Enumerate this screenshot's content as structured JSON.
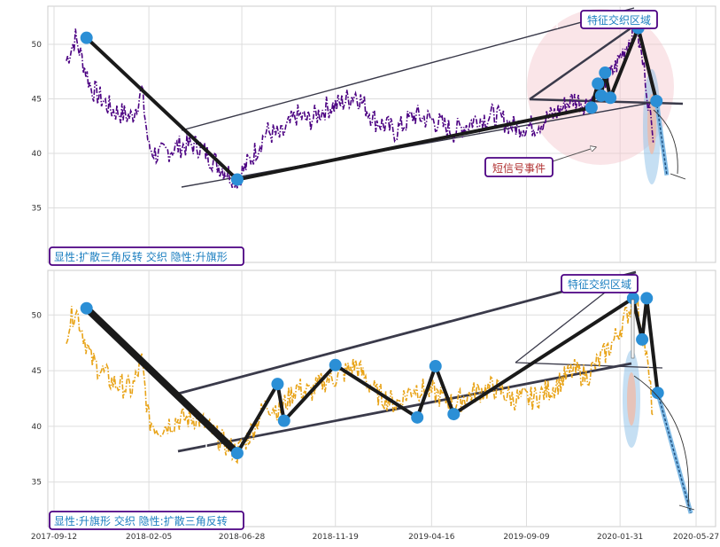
{
  "chart_data": [
    {
      "type": "line",
      "panel": "top",
      "ylim": [
        30,
        53.5
      ],
      "yticks": [
        "35",
        "40",
        "45",
        "50"
      ],
      "grid": true,
      "line_color": "#4b0082",
      "series": [
        {
          "values": [
            [
              "2017-10-01",
              48.5
            ],
            [
              "2017-10-15",
              50.6
            ],
            [
              "2017-11-08",
              46
            ],
            [
              "2017-12-10",
              44
            ],
            [
              "2018-01-10",
              43.3
            ],
            [
              "2018-01-25",
              45.8
            ],
            [
              "2018-02-05",
              40.5
            ],
            [
              "2018-02-20",
              39.8
            ],
            [
              "2018-03-20",
              40.6
            ],
            [
              "2018-04-20",
              40.8
            ],
            [
              "2018-05-25",
              38.8
            ],
            [
              "2018-06-21",
              37.6
            ],
            [
              "2018-07-12",
              39.5
            ],
            [
              "2018-08-05",
              42
            ],
            [
              "2018-08-27",
              41.5
            ],
            [
              "2018-09-20",
              43.5
            ],
            [
              "2018-10-10",
              43
            ],
            [
              "2018-11-05",
              44.2
            ],
            [
              "2018-11-25",
              44.5
            ],
            [
              "2018-12-20",
              45.5
            ],
            [
              "2019-01-20",
              43
            ],
            [
              "2019-02-20",
              42
            ],
            [
              "2019-03-20",
              43.5
            ],
            [
              "2019-04-20",
              43
            ],
            [
              "2019-05-20",
              42
            ],
            [
              "2019-06-20",
              43
            ],
            [
              "2019-07-20",
              43.5
            ],
            [
              "2019-08-20",
              42.5
            ],
            [
              "2019-09-20",
              42.5
            ],
            [
              "2019-10-20",
              43.5
            ],
            [
              "2019-11-20",
              45
            ],
            [
              "2019-12-10",
              44.5
            ],
            [
              "2020-01-01",
              46
            ],
            [
              "2020-01-20",
              47.5
            ],
            [
              "2020-02-10",
              50
            ],
            [
              "2020-02-25",
              51.5
            ],
            [
              "2020-03-10",
              47
            ],
            [
              "2020-03-22",
              41
            ]
          ]
        }
      ],
      "pivots": [
        [
          "2017-11-01",
          50.6
        ],
        [
          "2018-06-21",
          37.6
        ],
        [
          "2019-12-18",
          44.2
        ],
        [
          "2019-12-28",
          46.4
        ],
        [
          "2020-01-02",
          45.3
        ],
        [
          "2020-01-08",
          47.4
        ],
        [
          "2020-01-16",
          45.1
        ],
        [
          "2020-02-28",
          51.5
        ],
        [
          "2020-03-27",
          44.8
        ]
      ],
      "forecast_end": [
        "2020-04-12",
        38.0
      ],
      "annotations": [
        {
          "text": "特征交织区域"
        },
        {
          "text": "短信号事件"
        },
        {
          "text": "显性:扩散三角反转 交织 隐性:升旗形"
        }
      ]
    },
    {
      "type": "line",
      "panel": "bottom",
      "ylim": [
        31,
        54
      ],
      "yticks": [
        "35",
        "40",
        "45",
        "50"
      ],
      "xticks": [
        "2017-09-12",
        "2018-02-05",
        "2018-06-28",
        "2018-11-19",
        "2019-04-16",
        "2019-09-09",
        "2020-01-31",
        "2020-05-27"
      ],
      "grid": true,
      "line_color": "#e8a317",
      "series": [
        {
          "values": [
            [
              "2017-10-01",
              48.5
            ],
            [
              "2017-10-15",
              50.6
            ],
            [
              "2017-11-08",
              46
            ],
            [
              "2017-12-10",
              44
            ],
            [
              "2018-01-10",
              43.3
            ],
            [
              "2018-01-25",
              45.8
            ],
            [
              "2018-02-05",
              40.5
            ],
            [
              "2018-02-20",
              39.8
            ],
            [
              "2018-03-20",
              40.6
            ],
            [
              "2018-04-20",
              40.8
            ],
            [
              "2018-05-25",
              38.8
            ],
            [
              "2018-06-21",
              37.6
            ],
            [
              "2018-07-12",
              39.5
            ],
            [
              "2018-08-05",
              42
            ],
            [
              "2018-08-27",
              41.5
            ],
            [
              "2018-09-20",
              43.5
            ],
            [
              "2018-10-10",
              43
            ],
            [
              "2018-11-05",
              44.2
            ],
            [
              "2018-11-25",
              44.5
            ],
            [
              "2018-12-20",
              45.5
            ],
            [
              "2019-01-20",
              43
            ],
            [
              "2019-02-20",
              42
            ],
            [
              "2019-03-20",
              43.5
            ],
            [
              "2019-04-20",
              43
            ],
            [
              "2019-05-20",
              42
            ],
            [
              "2019-06-20",
              43
            ],
            [
              "2019-07-20",
              43.5
            ],
            [
              "2019-08-20",
              42.5
            ],
            [
              "2019-09-20",
              42.5
            ],
            [
              "2019-10-20",
              43.5
            ],
            [
              "2019-11-20",
              45
            ],
            [
              "2019-12-10",
              44.5
            ],
            [
              "2020-01-01",
              46
            ],
            [
              "2020-01-20",
              47.5
            ],
            [
              "2020-02-10",
              50
            ],
            [
              "2020-02-25",
              51.5
            ],
            [
              "2020-03-10",
              47
            ],
            [
              "2020-03-22",
              41
            ]
          ]
        }
      ],
      "pivots": [
        [
          "2017-11-01",
          50.6
        ],
        [
          "2018-06-21",
          37.6
        ],
        [
          "2018-08-22",
          43.8
        ],
        [
          "2018-09-01",
          40.5
        ],
        [
          "2018-11-19",
          45.5
        ],
        [
          "2019-03-25",
          40.8
        ],
        [
          "2019-04-22",
          45.4
        ],
        [
          "2019-05-20",
          41.1
        ],
        [
          "2020-02-20",
          51.5
        ],
        [
          "2020-03-05",
          47.8
        ],
        [
          "2020-03-12",
          51.5
        ],
        [
          "2020-03-29",
          43.0
        ]
      ],
      "forecast_end": [
        "2020-05-19",
        32.2
      ],
      "annotations": [
        {
          "text": "特征交织区域"
        },
        {
          "text": "显性:升旗形 交织 隐性:扩散三角反转"
        }
      ]
    }
  ],
  "colors": {
    "pivot": "#2b8fd6",
    "pattern_line": "#1a1a1a",
    "channel_line": "#3a3a4a",
    "annotation_text": "#1c7fc0",
    "event_text": "#b03030",
    "box_border": "#4b0082",
    "highlight_circle": "#f4c6cc",
    "forecast": "#7fb9e4",
    "forecast_dash": "#1a4a7a"
  }
}
